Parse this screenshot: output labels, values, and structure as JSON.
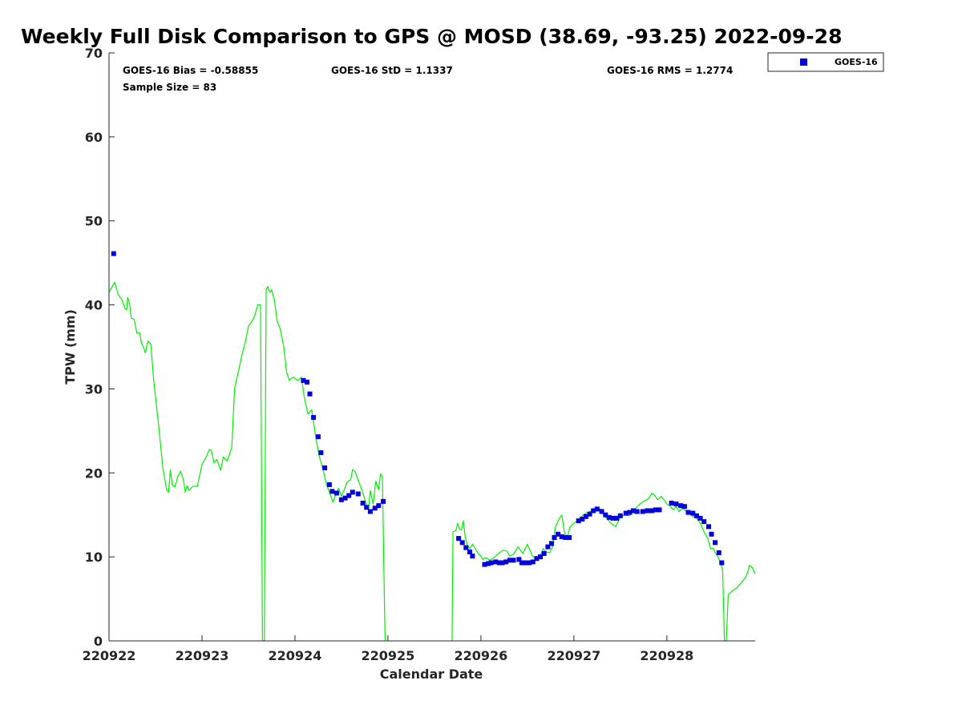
{
  "chart_data": {
    "type": "line+scatter",
    "title": "Weekly Full Disk Comparison to GPS @ MOSD (38.69, -93.25) 2022-09-28",
    "xlabel": "Calendar Date",
    "ylabel": "TPW (mm)",
    "xlim": [
      0,
      6.95
    ],
    "ylim": [
      0,
      70
    ],
    "x_unit": "days after 220922",
    "xticks": [
      {
        "value": 0,
        "label": "220922"
      },
      {
        "value": 1,
        "label": "220923"
      },
      {
        "value": 2,
        "label": "220924"
      },
      {
        "value": 3,
        "label": "220925"
      },
      {
        "value": 4,
        "label": "220926"
      },
      {
        "value": 5,
        "label": "220927"
      },
      {
        "value": 6,
        "label": "220928"
      }
    ],
    "yticks": [
      {
        "value": 0,
        "label": "0"
      },
      {
        "value": 10,
        "label": "10"
      },
      {
        "value": 20,
        "label": "20"
      },
      {
        "value": 30,
        "label": "30"
      },
      {
        "value": 40,
        "label": "40"
      },
      {
        "value": 50,
        "label": "50"
      },
      {
        "value": 60,
        "label": "60"
      },
      {
        "value": 70,
        "label": "70"
      }
    ],
    "grid": false,
    "legend": {
      "placement": "top-right",
      "entries": [
        "GOES-16"
      ]
    },
    "stats": {
      "bias": "GOES-16 Bias = -0.58855",
      "std": "GOES-16 StD = 1.1337",
      "rms": "GOES-16 RMS = 1.2774",
      "sample": "Sample Size = 83"
    },
    "series": [
      {
        "name": "GPS",
        "style": "line",
        "color": "#00ee00",
        "segments": [
          [
            [
              0.0,
              41.5
            ],
            [
              0.06,
              42.7
            ],
            [
              0.1,
              41.2
            ],
            [
              0.14,
              40.6
            ],
            [
              0.17,
              39.6
            ],
            [
              0.19,
              39.4
            ],
            [
              0.2,
              40.9
            ],
            [
              0.22,
              40.2
            ],
            [
              0.24,
              38.4
            ],
            [
              0.27,
              38.3
            ],
            [
              0.3,
              36.6
            ],
            [
              0.33,
              36.7
            ],
            [
              0.35,
              35.4
            ],
            [
              0.37,
              35.0
            ],
            [
              0.39,
              34.3
            ],
            [
              0.42,
              35.7
            ],
            [
              0.45,
              35.3
            ],
            [
              0.48,
              31.0
            ],
            [
              0.53,
              26.0
            ],
            [
              0.58,
              20.5
            ],
            [
              0.62,
              18.0
            ],
            [
              0.64,
              17.7
            ],
            [
              0.66,
              20.3
            ],
            [
              0.68,
              18.6
            ],
            [
              0.71,
              18.3
            ],
            [
              0.74,
              19.6
            ],
            [
              0.77,
              20.2
            ],
            [
              0.8,
              19.2
            ],
            [
              0.82,
              17.7
            ],
            [
              0.84,
              18.5
            ],
            [
              0.86,
              17.9
            ],
            [
              0.9,
              18.4
            ],
            [
              0.95,
              18.4
            ],
            [
              1.0,
              21.0
            ],
            [
              1.05,
              22.0
            ],
            [
              1.08,
              22.8
            ],
            [
              1.1,
              22.7
            ],
            [
              1.13,
              21.2
            ],
            [
              1.16,
              21.6
            ],
            [
              1.2,
              20.3
            ],
            [
              1.23,
              21.9
            ],
            [
              1.27,
              21.4
            ],
            [
              1.32,
              23.0
            ],
            [
              1.35,
              30.0
            ],
            [
              1.37,
              31.0
            ],
            [
              1.4,
              32.5
            ],
            [
              1.43,
              34.0
            ],
            [
              1.47,
              35.8
            ],
            [
              1.5,
              37.5
            ],
            [
              1.53,
              37.9
            ],
            [
              1.56,
              38.5
            ],
            [
              1.6,
              40.0
            ],
            [
              1.63,
              40.0
            ],
            [
              1.65,
              0.0
            ],
            [
              1.67,
              0.0
            ],
            [
              1.69,
              41.8
            ],
            [
              1.71,
              42.2
            ],
            [
              1.73,
              41.5
            ],
            [
              1.75,
              41.8
            ],
            [
              1.78,
              40.5
            ],
            [
              1.81,
              38.0
            ],
            [
              1.84,
              37.2
            ],
            [
              1.88,
              35.0
            ],
            [
              1.91,
              32.0
            ],
            [
              1.94,
              31.0
            ],
            [
              1.98,
              31.4
            ],
            [
              2.03,
              31.0
            ],
            [
              2.07,
              31.4
            ],
            [
              2.1,
              29.0
            ],
            [
              2.14,
              27.0
            ],
            [
              2.18,
              27.5
            ],
            [
              2.22,
              24.5
            ],
            [
              2.26,
              22.0
            ],
            [
              2.3,
              20.5
            ],
            [
              2.34,
              18.6
            ],
            [
              2.38,
              17.4
            ],
            [
              2.41,
              16.5
            ],
            [
              2.44,
              17.5
            ],
            [
              2.47,
              18.2
            ],
            [
              2.5,
              17.2
            ],
            [
              2.53,
              18.0
            ],
            [
              2.56,
              18.9
            ],
            [
              2.6,
              19.2
            ],
            [
              2.62,
              20.4
            ],
            [
              2.65,
              20.1
            ],
            [
              2.68,
              19.1
            ],
            [
              2.72,
              18.0
            ],
            [
              2.76,
              16.5
            ],
            [
              2.79,
              15.6
            ],
            [
              2.81,
              17.9
            ],
            [
              2.84,
              16.3
            ],
            [
              2.87,
              19.0
            ],
            [
              2.9,
              18.0
            ],
            [
              2.92,
              19.9
            ],
            [
              2.94,
              19.6
            ],
            [
              2.96,
              6.0
            ],
            [
              2.97,
              0.0
            ]
          ],
          [
            [
              3.69,
              0.0
            ],
            [
              3.7,
              13.0
            ],
            [
              3.73,
              13.1
            ],
            [
              3.75,
              14.0
            ],
            [
              3.77,
              13.3
            ],
            [
              3.79,
              13.2
            ],
            [
              3.81,
              14.3
            ],
            [
              3.83,
              12.5
            ],
            [
              3.85,
              11.5
            ],
            [
              3.88,
              11.0
            ],
            [
              3.91,
              11.5
            ],
            [
              3.94,
              11.0
            ],
            [
              3.97,
              10.4
            ],
            [
              4.0,
              10.1
            ],
            [
              4.02,
              9.7
            ],
            [
              4.05,
              9.9
            ],
            [
              4.1,
              9.6
            ],
            [
              4.15,
              10.0
            ],
            [
              4.2,
              10.5
            ],
            [
              4.24,
              10.8
            ],
            [
              4.28,
              10.7
            ],
            [
              4.31,
              10.1
            ],
            [
              4.35,
              10.3
            ],
            [
              4.4,
              11.2
            ],
            [
              4.45,
              10.4
            ],
            [
              4.5,
              11.5
            ],
            [
              4.55,
              10.2
            ],
            [
              4.6,
              9.6
            ],
            [
              4.64,
              10.2
            ],
            [
              4.67,
              11.0
            ],
            [
              4.7,
              10.6
            ],
            [
              4.74,
              10.5
            ],
            [
              4.77,
              11.2
            ],
            [
              4.8,
              13.5
            ],
            [
              4.84,
              14.5
            ],
            [
              4.87,
              15.0
            ],
            [
              4.9,
              12.8
            ],
            [
              4.93,
              12.4
            ],
            [
              4.96,
              13.6
            ],
            [
              5.0,
              14.0
            ],
            [
              5.05,
              14.4
            ],
            [
              5.1,
              15.0
            ],
            [
              5.15,
              15.3
            ],
            [
              5.2,
              15.5
            ],
            [
              5.25,
              15.9
            ],
            [
              5.3,
              15.6
            ],
            [
              5.35,
              14.6
            ],
            [
              5.4,
              14.0
            ],
            [
              5.45,
              13.6
            ],
            [
              5.5,
              14.7
            ],
            [
              5.55,
              15.0
            ],
            [
              5.6,
              14.9
            ],
            [
              5.65,
              15.6
            ],
            [
              5.7,
              16.2
            ],
            [
              5.75,
              16.6
            ],
            [
              5.8,
              16.9
            ],
            [
              5.84,
              17.6
            ],
            [
              5.87,
              17.3
            ],
            [
              5.9,
              16.8
            ],
            [
              5.94,
              17.2
            ],
            [
              5.97,
              16.8
            ],
            [
              6.0,
              16.3
            ],
            [
              6.04,
              16.0
            ],
            [
              6.07,
              15.6
            ],
            [
              6.1,
              16.0
            ],
            [
              6.13,
              15.4
            ],
            [
              6.17,
              15.8
            ],
            [
              6.2,
              15.5
            ],
            [
              6.24,
              15.2
            ],
            [
              6.28,
              14.8
            ],
            [
              6.32,
              14.6
            ],
            [
              6.36,
              14.0
            ],
            [
              6.4,
              13.0
            ],
            [
              6.44,
              12.2
            ],
            [
              6.47,
              11.0
            ],
            [
              6.5,
              11.0
            ],
            [
              6.52,
              10.5
            ],
            [
              6.55,
              10.0
            ],
            [
              6.57,
              9.5
            ],
            [
              6.6,
              8.5
            ],
            [
              6.62,
              0.0
            ],
            [
              6.64,
              0.0
            ],
            [
              6.66,
              5.5
            ],
            [
              6.7,
              5.9
            ],
            [
              6.75,
              6.3
            ],
            [
              6.8,
              6.9
            ],
            [
              6.85,
              7.6
            ],
            [
              6.87,
              8.2
            ],
            [
              6.89,
              9.0
            ],
            [
              6.92,
              8.7
            ],
            [
              6.95,
              8.0
            ]
          ]
        ]
      },
      {
        "name": "GOES-16",
        "style": "scatter",
        "marker": "square",
        "color": "#0000dd",
        "points": [
          [
            0.05,
            46.1
          ],
          [
            2.09,
            31.0
          ],
          [
            2.13,
            30.8
          ],
          [
            2.16,
            29.4
          ],
          [
            2.2,
            26.6
          ],
          [
            2.25,
            24.3
          ],
          [
            2.28,
            22.4
          ],
          [
            2.32,
            20.6
          ],
          [
            2.37,
            18.6
          ],
          [
            2.4,
            17.8
          ],
          [
            2.45,
            17.6
          ],
          [
            2.5,
            16.8
          ],
          [
            2.54,
            17.0
          ],
          [
            2.58,
            17.3
          ],
          [
            2.62,
            17.7
          ],
          [
            2.68,
            17.5
          ],
          [
            2.73,
            16.4
          ],
          [
            2.77,
            15.9
          ],
          [
            2.81,
            15.4
          ],
          [
            2.86,
            15.8
          ],
          [
            2.9,
            16.1
          ],
          [
            2.95,
            16.6
          ],
          [
            3.76,
            12.2
          ],
          [
            3.8,
            11.7
          ],
          [
            3.84,
            11.1
          ],
          [
            3.88,
            10.6
          ],
          [
            3.91,
            10.1
          ],
          [
            4.04,
            9.1
          ],
          [
            4.08,
            9.2
          ],
          [
            4.11,
            9.3
          ],
          [
            4.16,
            9.4
          ],
          [
            4.2,
            9.3
          ],
          [
            4.23,
            9.3
          ],
          [
            4.27,
            9.4
          ],
          [
            4.31,
            9.6
          ],
          [
            4.35,
            9.6
          ],
          [
            4.41,
            9.7
          ],
          [
            4.44,
            9.3
          ],
          [
            4.48,
            9.3
          ],
          [
            4.52,
            9.3
          ],
          [
            4.56,
            9.4
          ],
          [
            4.6,
            9.8
          ],
          [
            4.64,
            10.0
          ],
          [
            4.68,
            10.4
          ],
          [
            4.72,
            11.2
          ],
          [
            4.76,
            11.6
          ],
          [
            4.79,
            12.3
          ],
          [
            4.83,
            12.7
          ],
          [
            4.87,
            12.4
          ],
          [
            4.91,
            12.3
          ],
          [
            4.95,
            12.3
          ],
          [
            5.05,
            14.3
          ],
          [
            5.09,
            14.5
          ],
          [
            5.13,
            14.8
          ],
          [
            5.17,
            15.1
          ],
          [
            5.21,
            15.5
          ],
          [
            5.25,
            15.7
          ],
          [
            5.3,
            15.4
          ],
          [
            5.34,
            15.0
          ],
          [
            5.38,
            14.7
          ],
          [
            5.42,
            14.6
          ],
          [
            5.46,
            14.6
          ],
          [
            5.5,
            14.9
          ],
          [
            5.56,
            15.2
          ],
          [
            5.6,
            15.3
          ],
          [
            5.64,
            15.5
          ],
          [
            5.68,
            15.4
          ],
          [
            5.74,
            15.4
          ],
          [
            5.79,
            15.5
          ],
          [
            5.84,
            15.5
          ],
          [
            5.88,
            15.6
          ],
          [
            5.92,
            15.6
          ],
          [
            6.05,
            16.4
          ],
          [
            6.1,
            16.3
          ],
          [
            6.15,
            16.1
          ],
          [
            6.19,
            16.0
          ],
          [
            6.23,
            15.3
          ],
          [
            6.28,
            15.2
          ],
          [
            6.32,
            14.9
          ],
          [
            6.36,
            14.6
          ],
          [
            6.4,
            14.2
          ],
          [
            6.45,
            13.6
          ],
          [
            6.48,
            12.7
          ],
          [
            6.52,
            11.7
          ],
          [
            6.56,
            10.5
          ],
          [
            6.59,
            9.3
          ]
        ]
      }
    ]
  }
}
